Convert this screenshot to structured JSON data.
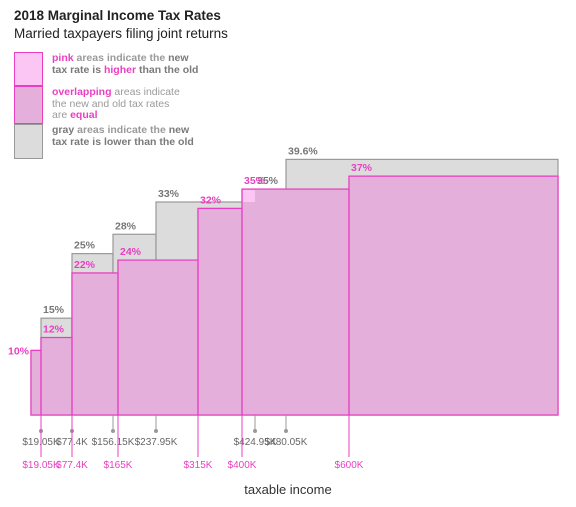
{
  "title": "2018 Marginal Income Tax Rates",
  "subtitle": "Married taxpayers filing joint returns",
  "legend": [
    {
      "key": "pink",
      "rest1": " areas indicate the ",
      "em1": "new",
      "line2a": "tax rate is ",
      "em2": "higher",
      "line2b": " than the old",
      "line3": ""
    },
    {
      "key": "overlapping",
      "rest1": " areas indicate",
      "em1": "",
      "line2a": "the new and old tax rates",
      "em2": "",
      "line2b": "",
      "line3a": "are ",
      "line3b": "equal"
    },
    {
      "key": "gray",
      "rest1": " areas indicate the ",
      "em1": "new",
      "line2a": "tax rate is ",
      "em2": "lower",
      "line2b": " than the old",
      "line3": ""
    }
  ],
  "colors": {
    "pink_fill": "#fcc6f4",
    "pink_stroke": "#e83fc0",
    "overlap_fill": "#e4afdb",
    "gray_fill": "#dcdcdc",
    "gray_stroke": "#999999",
    "pink_text": "#e93fc3",
    "gray_text": "#777777"
  },
  "chart_data": {
    "type": "step-area",
    "title": "2018 Marginal Income Tax Rates",
    "subtitle": "Married taxpayers filing joint returns",
    "xlabel": "taxable income",
    "ylabel": "",
    "ylim": [
      0,
      39.6
    ],
    "series": [
      {
        "name": "old",
        "brackets": [
          {
            "start": 0,
            "rate": 10,
            "rate_label": ""
          },
          {
            "start": 19050,
            "rate": 15,
            "rate_label": "15%"
          },
          {
            "start": 77400,
            "rate": 25,
            "rate_label": "25%"
          },
          {
            "start": 156150,
            "rate": 28,
            "rate_label": "28%"
          },
          {
            "start": 237950,
            "rate": 33,
            "rate_label": "33%"
          },
          {
            "start": 424950,
            "rate": 35,
            "rate_label": "35%"
          },
          {
            "start": 480050,
            "rate": 39.6,
            "rate_label": "39.6%"
          }
        ],
        "tick_labels": [
          "$19.05K",
          "$77.4K",
          "$156.15K",
          "$237.95K",
          "$424.95K",
          "$480.05K"
        ]
      },
      {
        "name": "new",
        "brackets": [
          {
            "start": 0,
            "rate": 10,
            "rate_label": "10%"
          },
          {
            "start": 19050,
            "rate": 12,
            "rate_label": "12%"
          },
          {
            "start": 77400,
            "rate": 22,
            "rate_label": "22%"
          },
          {
            "start": 165000,
            "rate": 24,
            "rate_label": "24%"
          },
          {
            "start": 315000,
            "rate": 32,
            "rate_label": "32%"
          },
          {
            "start": 400000,
            "rate": 35,
            "rate_label": "35%"
          },
          {
            "start": 600000,
            "rate": 37,
            "rate_label": "37%"
          }
        ],
        "tick_labels": [
          "$19.05K",
          "$77.4K",
          "$165K",
          "$315K",
          "$400K",
          "$600K"
        ]
      }
    ]
  }
}
